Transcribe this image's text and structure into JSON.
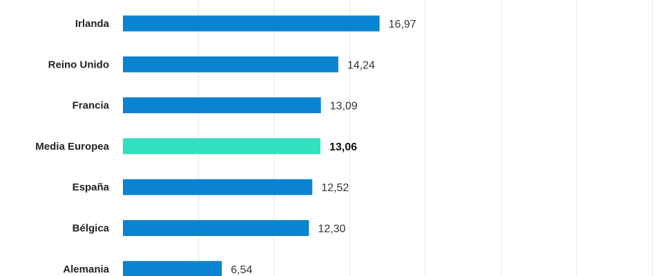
{
  "chart_data": {
    "type": "bar",
    "orientation": "horizontal",
    "categories": [
      "Irlanda",
      "Reino Unido",
      "Francia",
      "Media Europea",
      "España",
      "Bélgica",
      "Alemania"
    ],
    "value_labels": [
      "16,97",
      "14,24",
      "13,09",
      "13,06",
      "12,52",
      "12,30",
      "6,54"
    ],
    "values": [
      16.97,
      14.24,
      13.09,
      13.06,
      12.52,
      12.3,
      6.54
    ],
    "highlight_category": "Media Europea",
    "xlim": [
      0,
      35
    ],
    "grid": true,
    "colors": {
      "bar": "#0a84d0",
      "highlight": "#33e0bf"
    }
  }
}
